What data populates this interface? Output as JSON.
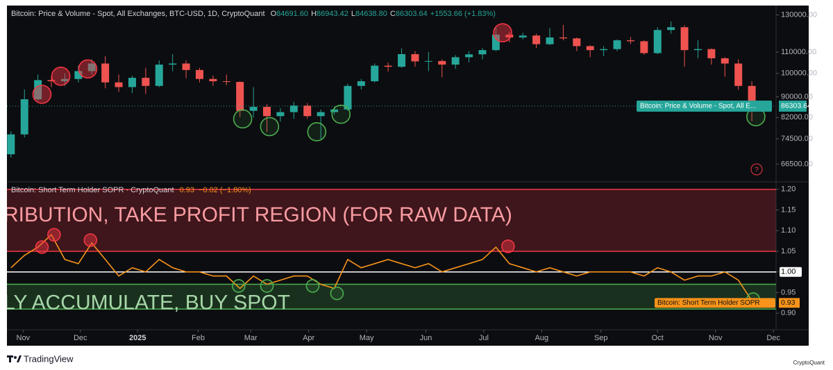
{
  "chart_data": [
    {
      "type": "candlestick",
      "title": "Bitcoin: Price & Volume - Spot, All Exchanges, BTC-USD, 1D, CryptoQuant",
      "readout": [
        {
          "key": "O",
          "value": "84691.60"
        },
        {
          "key": "H",
          "value": "86943.42"
        },
        {
          "key": "L",
          "value": "84638.80"
        },
        {
          "key": "C",
          "value": "86303.64"
        }
      ],
      "change": "+1553.66 (+1.83%)",
      "last_label": "Bitcoin: Price & Volume - Spot, All E...",
      "up_color": "#26a69a",
      "down_color": "#ef5350",
      "open": [
        69500,
        76000,
        89000,
        97000,
        96500,
        97500,
        101000,
        104500,
        96000,
        94000,
        98000,
        94500,
        104000,
        104500,
        101500,
        97500,
        96500,
        96200,
        84500,
        86000,
        82500,
        84000,
        86500,
        82500,
        84000,
        85000,
        94500,
        96500,
        103500,
        103000,
        109000,
        105500,
        105700,
        104000,
        107500,
        108900,
        111000,
        119000,
        117500,
        118500,
        114000,
        117500,
        117000,
        113000,
        111000,
        111500,
        116000,
        115500,
        109500,
        121500,
        123000,
        111000,
        111500,
        107000,
        104500,
        94500
      ],
      "high": [
        77000,
        93000,
        99500,
        98800,
        100000,
        103500,
        106500,
        108000,
        99500,
        99000,
        102500,
        106000,
        109000,
        106000,
        102500,
        99000,
        99500,
        96500,
        94000,
        87000,
        85500,
        88000,
        87500,
        85000,
        86000,
        95500,
        97500,
        104500,
        105000,
        111900,
        110500,
        110000,
        106500,
        108500,
        110500,
        112000,
        123000,
        120500,
        120000,
        119500,
        122500,
        124300,
        117500,
        113500,
        113000,
        116500,
        117800,
        116000,
        123000,
        126200,
        124000,
        116000,
        111800,
        107500,
        106500,
        96500
      ],
      "low": [
        68500,
        75000,
        88500,
        94000,
        94500,
        96000,
        99500,
        93500,
        92000,
        91500,
        91200,
        94000,
        101000,
        97800,
        96000,
        94500,
        94800,
        82200,
        82000,
        76800,
        80500,
        81500,
        81500,
        74500,
        83000,
        84500,
        93000,
        96000,
        100800,
        102500,
        103000,
        101000,
        98200,
        102000,
        105000,
        106500,
        110500,
        115000,
        116500,
        112000,
        113500,
        116000,
        110500,
        107500,
        108000,
        110500,
        114000,
        108700,
        109000,
        119500,
        103000,
        107000,
        104000,
        98500,
        92900,
        80600
      ],
      "close": [
        76000,
        89000,
        97000,
        96500,
        97500,
        101000,
        104500,
        96000,
        94000,
        98000,
        94500,
        104000,
        104500,
        101500,
        97500,
        96500,
        96200,
        84500,
        86000,
        82500,
        84000,
        86500,
        82500,
        84000,
        85000,
        94500,
        96500,
        103500,
        103000,
        109000,
        105500,
        105700,
        104000,
        107500,
        108900,
        111000,
        119000,
        117500,
        118500,
        114000,
        117500,
        117000,
        113000,
        111000,
        111500,
        116000,
        115500,
        109500,
        121500,
        123000,
        111000,
        111500,
        107000,
        104500,
        94500,
        86303.64
      ],
      "xlim": [
        -0.3,
        56.8
      ],
      "log": true,
      "ylim": [
        61400,
        135600
      ],
      "yticks": [
        {
          "value": 130000,
          "label": "130000.00"
        },
        {
          "value": 110000,
          "label": "110000.00"
        },
        {
          "value": 100000,
          "label": "100000.00"
        },
        {
          "value": 90000,
          "label": "90000.00"
        },
        {
          "value": 82000,
          "label": "82000.00"
        },
        {
          "value": 74500,
          "label": "74500.00"
        },
        {
          "value": 66500,
          "label": "66500.00"
        }
      ],
      "highlights": [
        {
          "x": 2.3,
          "y": 91000,
          "color": "#f23645"
        },
        {
          "x": 3.7,
          "y": 98700,
          "color": "#f23645"
        },
        {
          "x": 5.7,
          "y": 102000,
          "color": "#f23645"
        },
        {
          "x": 36.5,
          "y": 120000,
          "color": "#f23645"
        },
        {
          "x": 17.2,
          "y": 81500,
          "color": "#4caf50"
        },
        {
          "x": 19.2,
          "y": 78700,
          "color": "#4caf50"
        },
        {
          "x": 22.7,
          "y": 76900,
          "color": "#4caf50"
        },
        {
          "x": 24.5,
          "y": 83200,
          "color": "#4caf50"
        },
        {
          "x": 55.3,
          "y": 82300,
          "color": "#4caf50"
        }
      ]
    },
    {
      "type": "line",
      "title": "Bitcoin: Short Term Holder SOPR · CryptoQuant",
      "change": "−0.02 (−1.80%)",
      "last_label": "Bitcoin: Short Term Holder SOPR",
      "color": "#f7931a",
      "values": [
        1.01,
        1.04,
        1.06,
        1.09,
        1.03,
        1.02,
        1.07,
        1.03,
        0.99,
        1.01,
        1.0,
        1.03,
        1.01,
        1.0,
        1.0,
        0.99,
        0.99,
        0.96,
        0.99,
        0.97,
        0.98,
        0.99,
        0.99,
        0.97,
        0.96,
        1.03,
        1.01,
        1.02,
        1.03,
        1.02,
        1.01,
        1.02,
        1.0,
        1.01,
        1.02,
        1.03,
        1.06,
        1.02,
        1.01,
        1.0,
        1.01,
        1.0,
        0.99,
        1.0,
        1.0,
        1.0,
        1.0,
        0.99,
        1.01,
        1.0,
        0.98,
        0.99,
        0.99,
        1.0,
        0.98,
        0.93
      ],
      "xlim": [
        -0.3,
        56.8
      ],
      "ylim": [
        0.865,
        1.218
      ],
      "yticks": [
        {
          "value": 1.2,
          "label": "1.20"
        },
        1.15,
        {
          "value": 1.1,
          "label": "1.10"
        },
        1.05,
        {
          "value": 1,
          "label": "1.00"
        },
        0.95,
        {
          "value": 0.9,
          "label": "0.90"
        }
      ],
      "reference_line": 1,
      "bands": [
        {
          "from": 1.05,
          "to": 1.2,
          "color": "#f23645",
          "label": "RIBUTION, TAKE PROFIT REGION (FOR RAW DATA)"
        },
        {
          "from": 0.91,
          "to": 0.97,
          "color": "#4caf50",
          "label": "LY ACCUMULATE, BUY SPOT"
        }
      ],
      "highlights": [
        {
          "x": 2.3,
          "y": 1.06,
          "color": "#f23645"
        },
        {
          "x": 3.2,
          "y": 1.09,
          "color": "#f23645"
        },
        {
          "x": 5.9,
          "y": 1.077,
          "color": "#f23645"
        },
        {
          "x": 36.9,
          "y": 1.062,
          "color": "#f23645"
        },
        {
          "x": 16.9,
          "y": 0.966,
          "color": "#4caf50"
        },
        {
          "x": 19.0,
          "y": 0.966,
          "color": "#4caf50"
        },
        {
          "x": 22.4,
          "y": 0.966,
          "color": "#4caf50"
        },
        {
          "x": 24.2,
          "y": 0.948,
          "color": "#4caf50"
        },
        {
          "x": 55.1,
          "y": 0.934,
          "color": "#4caf50"
        }
      ],
      "xticks": [
        {
          "value": 0.9,
          "label": "Nov"
        },
        {
          "value": 5.15,
          "label": "Dec"
        },
        {
          "value": 9.4,
          "label": "2025"
        },
        {
          "value": 13.9,
          "label": "Feb"
        },
        {
          "value": 17.8,
          "label": "Mar"
        },
        {
          "value": 22.1,
          "label": "Apr"
        },
        {
          "value": 26.4,
          "label": "May"
        },
        {
          "value": 30.8,
          "label": "Jun"
        },
        {
          "value": 35.1,
          "label": "Jul"
        },
        {
          "value": 39.4,
          "label": "Aug"
        },
        {
          "value": 43.8,
          "label": "Sep"
        },
        {
          "value": 48.0,
          "label": "Oct"
        },
        {
          "value": 52.3,
          "label": "Nov"
        },
        {
          "value": 56.6,
          "label": "Dec"
        }
      ]
    }
  ],
  "footer": {
    "brand": "TradingView",
    "watermark": "CryptoQuant"
  }
}
